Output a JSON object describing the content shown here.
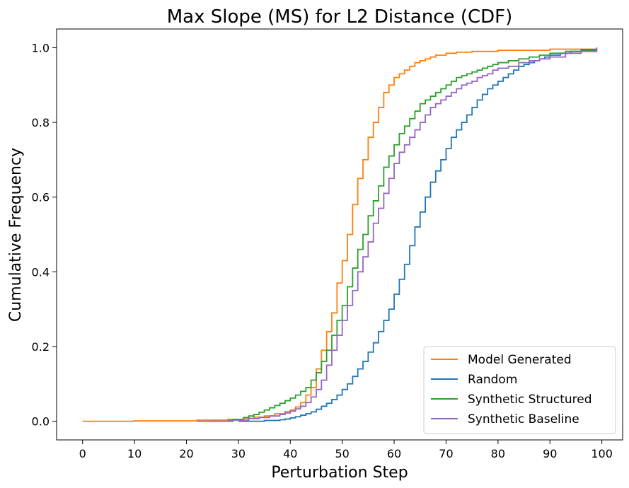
{
  "chart_data": {
    "type": "line",
    "title": "Max Slope (MS) for L2 Distance (CDF)",
    "xlabel": "Perturbation Step",
    "ylabel": "Cumulative Frequency",
    "xlim": [
      -5,
      104
    ],
    "ylim": [
      -0.05,
      1.05
    ],
    "xticks": [
      0,
      10,
      20,
      30,
      40,
      50,
      60,
      70,
      80,
      90,
      100
    ],
    "yticks": [
      0.0,
      0.2,
      0.4,
      0.6,
      0.8,
      1.0
    ],
    "ytick_labels": [
      "0.0",
      "0.2",
      "0.4",
      "0.6",
      "0.8",
      "1.0"
    ],
    "grid": false,
    "legend_position": "lower-right",
    "step": true,
    "series": [
      {
        "name": "Model Generated",
        "color": "#ff7f0e",
        "x": [
          0,
          10,
          22,
          28,
          31,
          33,
          35,
          37,
          39,
          40,
          41,
          42,
          43,
          44,
          45,
          46,
          47,
          48,
          49,
          50,
          51,
          52,
          53,
          54,
          55,
          56,
          57,
          58,
          59,
          60,
          61,
          62,
          63,
          64,
          65,
          66,
          67,
          68,
          70,
          72,
          75,
          80,
          90,
          99
        ],
        "y": [
          0.0,
          0.001,
          0.003,
          0.005,
          0.008,
          0.011,
          0.014,
          0.02,
          0.026,
          0.03,
          0.038,
          0.05,
          0.07,
          0.09,
          0.14,
          0.19,
          0.24,
          0.29,
          0.37,
          0.43,
          0.5,
          0.58,
          0.65,
          0.7,
          0.76,
          0.8,
          0.84,
          0.88,
          0.9,
          0.92,
          0.93,
          0.94,
          0.95,
          0.96,
          0.965,
          0.97,
          0.975,
          0.98,
          0.985,
          0.988,
          0.99,
          0.993,
          0.996,
          1.0
        ]
      },
      {
        "name": "Random",
        "color": "#1f77b4",
        "x": [
          30,
          35,
          38,
          39,
          40,
          41,
          42,
          43,
          44,
          45,
          46,
          47,
          48,
          49,
          50,
          51,
          52,
          53,
          54,
          55,
          56,
          57,
          58,
          59,
          60,
          61,
          62,
          63,
          64,
          65,
          66,
          67,
          68,
          69,
          70,
          71,
          72,
          73,
          74,
          75,
          76,
          77,
          78,
          79,
          80,
          81,
          82,
          83,
          84,
          85,
          86,
          87,
          88,
          89,
          90,
          92,
          94,
          96,
          99
        ],
        "y": [
          0.0,
          0.002,
          0.004,
          0.006,
          0.009,
          0.012,
          0.016,
          0.02,
          0.025,
          0.032,
          0.04,
          0.048,
          0.058,
          0.07,
          0.085,
          0.1,
          0.12,
          0.14,
          0.16,
          0.185,
          0.21,
          0.24,
          0.27,
          0.3,
          0.34,
          0.38,
          0.42,
          0.47,
          0.52,
          0.56,
          0.6,
          0.64,
          0.67,
          0.7,
          0.73,
          0.76,
          0.78,
          0.8,
          0.82,
          0.84,
          0.86,
          0.875,
          0.89,
          0.9,
          0.91,
          0.92,
          0.93,
          0.94,
          0.95,
          0.955,
          0.96,
          0.965,
          0.97,
          0.975,
          0.98,
          0.985,
          0.99,
          0.995,
          1.0
        ]
      },
      {
        "name": "Synthetic Structured",
        "color": "#2ca02c",
        "x": [
          25,
          29,
          31,
          32,
          33,
          34,
          35,
          36,
          37,
          38,
          39,
          40,
          41,
          42,
          43,
          44,
          45,
          46,
          47,
          48,
          49,
          50,
          51,
          52,
          53,
          54,
          55,
          56,
          57,
          58,
          59,
          60,
          61,
          62,
          63,
          64,
          65,
          66,
          67,
          68,
          69,
          70,
          71,
          72,
          73,
          74,
          75,
          76,
          77,
          78,
          79,
          80,
          82,
          84,
          86,
          88,
          90,
          93,
          96,
          99
        ],
        "y": [
          0.0,
          0.005,
          0.01,
          0.014,
          0.018,
          0.024,
          0.03,
          0.036,
          0.042,
          0.048,
          0.055,
          0.062,
          0.07,
          0.08,
          0.09,
          0.11,
          0.13,
          0.16,
          0.19,
          0.23,
          0.27,
          0.31,
          0.36,
          0.41,
          0.46,
          0.5,
          0.55,
          0.59,
          0.63,
          0.68,
          0.71,
          0.74,
          0.77,
          0.79,
          0.81,
          0.83,
          0.85,
          0.86,
          0.87,
          0.88,
          0.89,
          0.9,
          0.91,
          0.92,
          0.925,
          0.93,
          0.935,
          0.94,
          0.945,
          0.95,
          0.955,
          0.96,
          0.965,
          0.97,
          0.975,
          0.98,
          0.985,
          0.99,
          0.993,
          0.995
        ]
      },
      {
        "name": "Synthetic Baseline",
        "color": "#9467bd",
        "x": [
          22,
          28,
          32,
          34,
          36,
          38,
          39,
          40,
          41,
          42,
          43,
          44,
          45,
          46,
          47,
          48,
          49,
          50,
          51,
          52,
          53,
          54,
          55,
          56,
          57,
          58,
          59,
          60,
          61,
          62,
          63,
          64,
          65,
          66,
          67,
          68,
          69,
          70,
          71,
          72,
          73,
          74,
          75,
          76,
          77,
          78,
          79,
          80,
          82,
          84,
          86,
          88,
          90,
          93,
          96,
          99
        ],
        "y": [
          0.0,
          0.003,
          0.007,
          0.01,
          0.014,
          0.018,
          0.022,
          0.027,
          0.033,
          0.04,
          0.05,
          0.065,
          0.085,
          0.11,
          0.15,
          0.19,
          0.23,
          0.27,
          0.31,
          0.35,
          0.4,
          0.44,
          0.48,
          0.53,
          0.57,
          0.61,
          0.65,
          0.69,
          0.72,
          0.74,
          0.76,
          0.78,
          0.8,
          0.82,
          0.84,
          0.85,
          0.86,
          0.87,
          0.88,
          0.89,
          0.9,
          0.905,
          0.91,
          0.92,
          0.925,
          0.93,
          0.94,
          0.945,
          0.95,
          0.96,
          0.965,
          0.97,
          0.975,
          0.985,
          0.99,
          1.0
        ]
      }
    ]
  }
}
